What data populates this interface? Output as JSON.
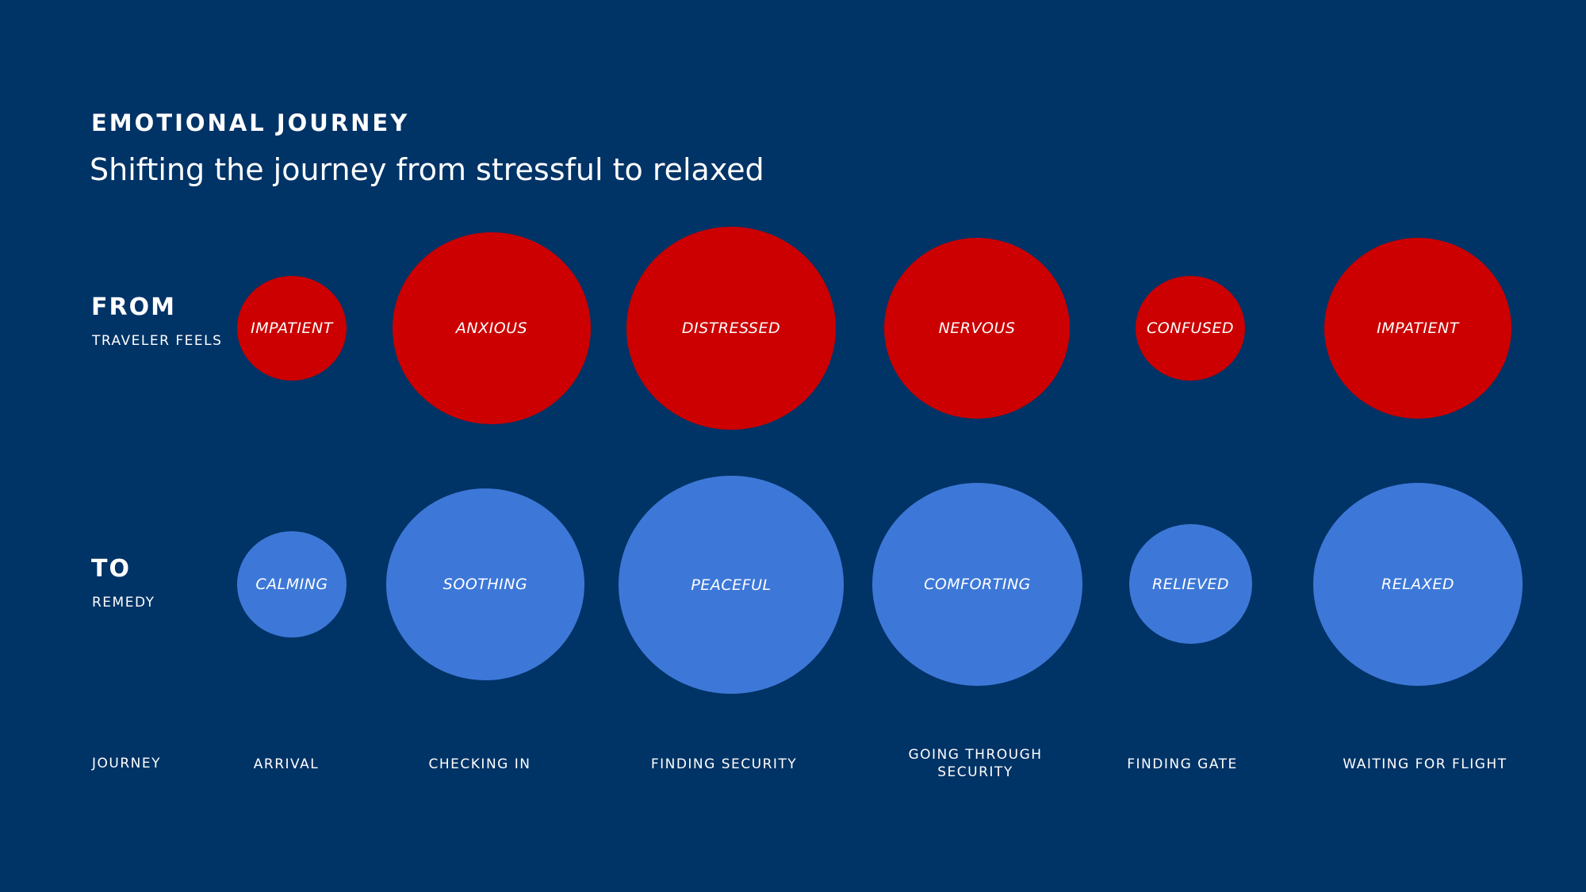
{
  "title": "EMOTIONAL JOURNEY",
  "subtitle": "Shifting the journey from stressful to relaxed",
  "from_row": {
    "heading": "FROM",
    "label": "TRAVELER FEELS"
  },
  "to_row": {
    "heading": "TO",
    "label": "REMEDY"
  },
  "journey_label": "JOURNEY",
  "colors": {
    "background": "#003366",
    "from": "#cc0000",
    "to": "#3d78d8",
    "text": "#ffffff"
  },
  "stages": [
    {
      "step": "ARRIVAL",
      "feeling": "IMPATIENT",
      "remedy": "CALMING"
    },
    {
      "step": "CHECKING IN",
      "feeling": "ANXIOUS",
      "remedy": "SOOTHING"
    },
    {
      "step": "FINDING SECURITY",
      "feeling": "DISTRESSED",
      "remedy": "PEACEFUL"
    },
    {
      "step": "GOING THROUGH SECURITY",
      "feeling": "NERVOUS",
      "remedy": "COMFORTING"
    },
    {
      "step": "FINDING GATE",
      "feeling": "CONFUSED",
      "remedy": "RELIEVED"
    },
    {
      "step": "WAITING FOR FLIGHT",
      "feeling": "IMPATIENT",
      "remedy": "RELAXED"
    }
  ]
}
